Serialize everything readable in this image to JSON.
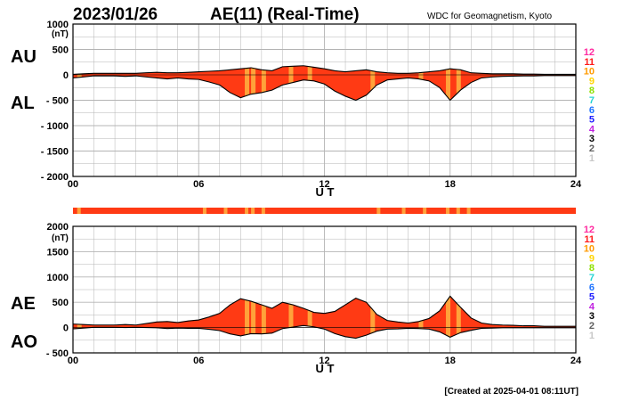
{
  "header": {
    "date": "2023/01/26",
    "title": "AE(11) (Real-Time)",
    "source": "WDC for Geomagnetism, Kyoto"
  },
  "footer": "[Created at 2025-04-01 08:11UT]",
  "station_scale": {
    "labels": [
      "12",
      "11",
      "10",
      "9",
      "8",
      "7",
      "6",
      "5",
      "4",
      "3",
      "2",
      "1"
    ],
    "colors": [
      "#ff2aa0",
      "#ff1a1a",
      "#ff9a00",
      "#ffd400",
      "#8ee000",
      "#26d4d4",
      "#1e74ff",
      "#2020ff",
      "#c020e0",
      "#000000",
      "#606060",
      "#c8c8c8"
    ]
  },
  "colors": {
    "fill": "#ff3a14",
    "fill_light": "#ffa23a",
    "line": "#000000",
    "grid": "#b4b4b4",
    "bar": "#ff3a14"
  },
  "chart_data": [
    {
      "type": "area",
      "id": "au_al",
      "ylabel": "(nT)",
      "xlabel": "U T",
      "xlim": [
        0,
        24
      ],
      "ylim": [
        -2000,
        1000
      ],
      "x_ticks": [
        "00",
        "06",
        "12",
        "18",
        "24"
      ],
      "y_ticks": [
        "1000",
        "500",
        "0",
        "- 500",
        "- 1000",
        "- 1500",
        "- 2000"
      ],
      "side_labels": {
        "upper": "AU",
        "lower": "AL"
      },
      "grid": true,
      "series": [
        {
          "name": "AU",
          "x": [
            0,
            0.5,
            1,
            1.5,
            2,
            2.5,
            3,
            3.5,
            4,
            4.5,
            5,
            5.5,
            6,
            6.5,
            7,
            7.5,
            8,
            8.5,
            9,
            9.5,
            10,
            10.5,
            11,
            11.5,
            12,
            12.5,
            13,
            13.5,
            14,
            14.5,
            15,
            15.5,
            16,
            16.5,
            17,
            17.5,
            18,
            18.5,
            19,
            19.5,
            20,
            20.5,
            21,
            21.5,
            22,
            22.5,
            23,
            23.5,
            24
          ],
          "values": [
            10,
            20,
            30,
            30,
            30,
            30,
            30,
            40,
            50,
            40,
            40,
            50,
            60,
            70,
            80,
            100,
            120,
            140,
            100,
            80,
            160,
            170,
            180,
            150,
            120,
            80,
            60,
            80,
            100,
            60,
            40,
            30,
            30,
            40,
            60,
            80,
            120,
            100,
            40,
            30,
            20,
            20,
            20,
            15,
            15,
            10,
            10,
            10,
            10
          ]
        },
        {
          "name": "AL",
          "x": [
            0,
            0.5,
            1,
            1.5,
            2,
            2.5,
            3,
            3.5,
            4,
            4.5,
            5,
            5.5,
            6,
            6.5,
            7,
            7.5,
            8,
            8.5,
            9,
            9.5,
            10,
            10.5,
            11,
            11.5,
            12,
            12.5,
            13,
            13.5,
            14,
            14.5,
            15,
            15.5,
            16,
            16.5,
            17,
            17.5,
            18,
            18.5,
            19,
            19.5,
            20,
            20.5,
            21,
            21.5,
            22,
            22.5,
            23,
            23.5,
            24
          ],
          "values": [
            -60,
            -40,
            -20,
            -20,
            -20,
            -30,
            -20,
            -40,
            -60,
            -80,
            -60,
            -80,
            -90,
            -140,
            -200,
            -350,
            -450,
            -380,
            -350,
            -300,
            -200,
            -150,
            -100,
            -120,
            -180,
            -320,
            -420,
            -500,
            -400,
            -200,
            -100,
            -80,
            -60,
            -80,
            -120,
            -250,
            -500,
            -300,
            -150,
            -60,
            -40,
            -30,
            -25,
            -20,
            -20,
            -15,
            -15,
            -15,
            -15
          ]
        }
      ],
      "light_bands_x": [
        0.2,
        8.2,
        8.5,
        9.0,
        10.3,
        11.2,
        14.2,
        16.5,
        17.8,
        18.3
      ]
    },
    {
      "type": "area",
      "id": "ae_ao",
      "ylabel": "(nT)",
      "xlabel": "U T",
      "xlim": [
        0,
        24
      ],
      "ylim": [
        -500,
        2000
      ],
      "x_ticks": [
        "00",
        "06",
        "12",
        "18",
        "24"
      ],
      "y_ticks": [
        "2000",
        "1500",
        "1000",
        "500",
        "0",
        "- 500"
      ],
      "side_labels": {
        "upper": "AE",
        "lower": "AO"
      },
      "grid": true,
      "series": [
        {
          "name": "AE",
          "x": [
            0,
            0.5,
            1,
            1.5,
            2,
            2.5,
            3,
            3.5,
            4,
            4.5,
            5,
            5.5,
            6,
            6.5,
            7,
            7.5,
            8,
            8.5,
            9,
            9.5,
            10,
            10.5,
            11,
            11.5,
            12,
            12.5,
            13,
            13.5,
            14,
            14.5,
            15,
            15.5,
            16,
            16.5,
            17,
            17.5,
            18,
            18.5,
            19,
            19.5,
            20,
            20.5,
            21,
            21.5,
            22,
            22.5,
            23,
            23.5,
            24
          ],
          "values": [
            70,
            60,
            50,
            50,
            50,
            60,
            50,
            80,
            110,
            120,
            100,
            130,
            150,
            210,
            280,
            450,
            570,
            520,
            450,
            380,
            500,
            450,
            380,
            300,
            280,
            320,
            450,
            580,
            500,
            260,
            140,
            110,
            90,
            120,
            180,
            330,
            620,
            400,
            190,
            90,
            60,
            50,
            45,
            35,
            35,
            25,
            25,
            25,
            25
          ]
        },
        {
          "name": "AO",
          "x": [
            0,
            0.5,
            1,
            1.5,
            2,
            2.5,
            3,
            3.5,
            4,
            4.5,
            5,
            5.5,
            6,
            6.5,
            7,
            7.5,
            8,
            8.5,
            9,
            9.5,
            10,
            10.5,
            11,
            11.5,
            12,
            12.5,
            13,
            13.5,
            14,
            14.5,
            15,
            15.5,
            16,
            16.5,
            17,
            17.5,
            18,
            18.5,
            19,
            19.5,
            20,
            20.5,
            21,
            21.5,
            22,
            22.5,
            23,
            23.5,
            24
          ],
          "values": [
            -25,
            -10,
            5,
            5,
            5,
            0,
            5,
            0,
            -5,
            -20,
            -10,
            -15,
            -15,
            -35,
            -60,
            -125,
            -165,
            -120,
            -125,
            -110,
            -20,
            10,
            40,
            15,
            -30,
            -120,
            -180,
            -210,
            -150,
            -70,
            -30,
            -25,
            -15,
            -20,
            -30,
            -85,
            -190,
            -100,
            -55,
            -15,
            -10,
            -5,
            -3,
            -3,
            -3,
            -3,
            -3,
            -3,
            -3
          ]
        }
      ],
      "light_bands_x": [
        0.2,
        8.2,
        8.5,
        9.0,
        10.3,
        11.2,
        14.2,
        16.5,
        17.8,
        18.3
      ]
    }
  ],
  "station_bar": {
    "light_x": [
      0.2,
      6.2,
      7.2,
      8.2,
      8.5,
      9.0,
      14.5,
      15.7,
      16.7,
      17.8,
      18.3,
      18.8
    ]
  }
}
